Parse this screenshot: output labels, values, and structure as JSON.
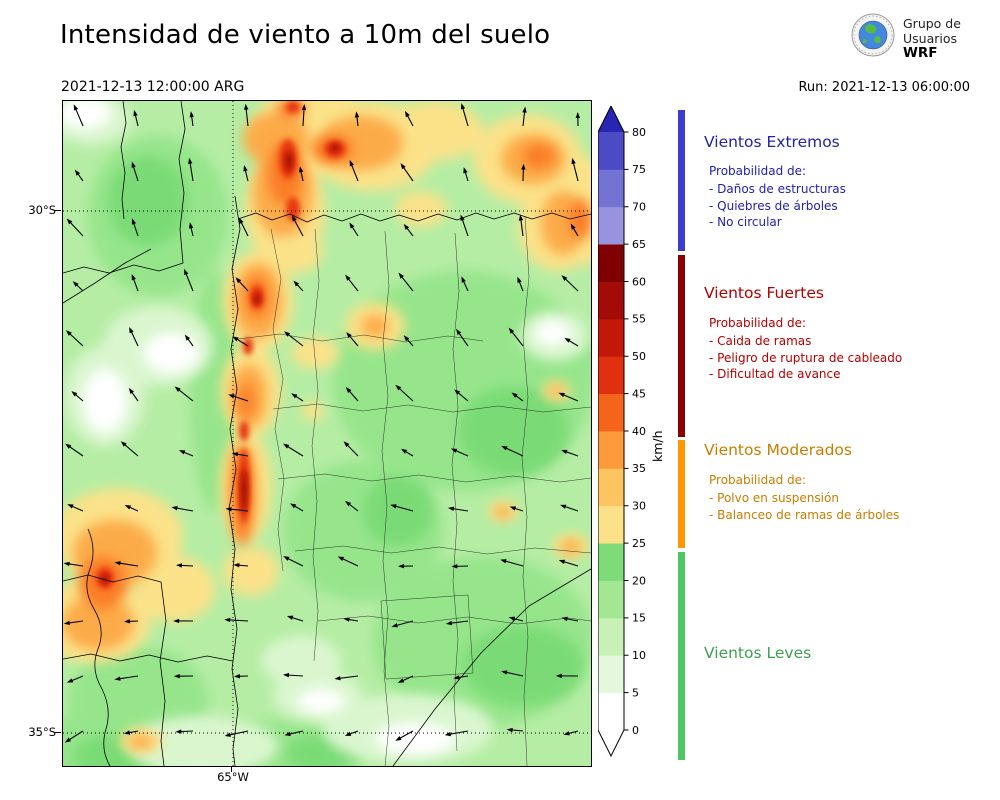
{
  "header": {
    "title": "Intensidad de viento a 10m del suelo",
    "datetime": "2021-12-13 12:00:00 ARG",
    "run": "Run: 2021-12-13 06:00:00",
    "logo": {
      "line1": "Grupo de",
      "line2": "Usuarios",
      "line3": "WRF"
    }
  },
  "map": {
    "y_ticks": [
      "30°S",
      "35°S"
    ],
    "x_ticks": [
      "65°W"
    ]
  },
  "colorbar": {
    "unit": "km/h",
    "ticks": [
      0,
      5,
      10,
      15,
      20,
      25,
      30,
      35,
      40,
      45,
      50,
      55,
      60,
      65,
      70,
      75,
      80
    ],
    "segments": [
      "#ffffff",
      "#e5f8dd",
      "#c7f1b6",
      "#a3e792",
      "#7edc78",
      "#fbe289",
      "#fcc55f",
      "#fd9b3b",
      "#f4641a",
      "#e0300f",
      "#c31709",
      "#a30b06",
      "#7f0000",
      "#9694dd",
      "#7472d2",
      "#4c4ac4"
    ],
    "arrow_top": "#2824b4",
    "arrow_bottom": "#ffffff"
  },
  "legend": {
    "sections": [
      {
        "title": "Vientos Extremos",
        "color": "#2222aa",
        "bar_color": "#3c3ccf",
        "intro": "Probabilidad de:",
        "items": [
          "- Daños de estructuras",
          "- Quiebres de árboles",
          "- No circular"
        ]
      },
      {
        "title": "Vientos Fuertes",
        "color": "#b30000",
        "bar_color": "#8b0000",
        "intro": "Probabilidad de:",
        "items": [
          "- Caida de ramas",
          "- Peligro de ruptura de cableado",
          "- Dificultad de avance"
        ]
      },
      {
        "title": "Vientos Moderados",
        "color": "#c87d00",
        "bar_color": "#ff9802",
        "intro": "Probabilidad de:",
        "items": [
          "- Polvo en suspensión",
          "- Balanceo de ramas de árboles"
        ]
      },
      {
        "title": "Vientos Leves",
        "color": "#3f9e4f",
        "bar_color": "#4dc763",
        "intro": "",
        "items": []
      }
    ]
  }
}
